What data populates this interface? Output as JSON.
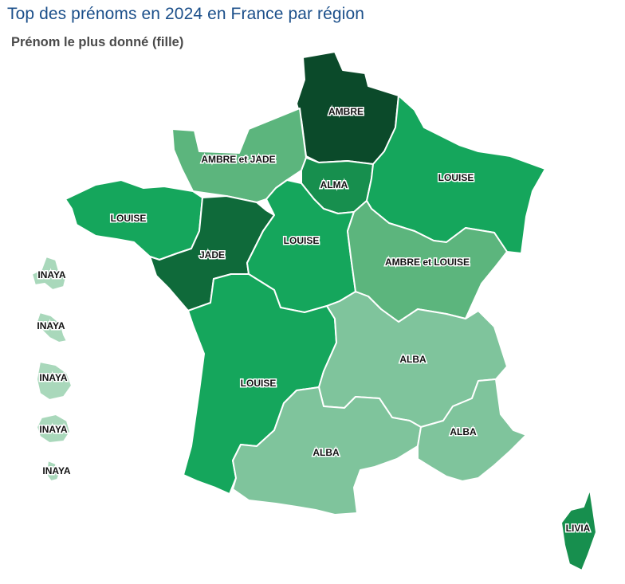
{
  "title": "Top des prénoms en 2024 en France par région",
  "subtitle": "Prénom le plus donné (fille)",
  "colors": {
    "darkest": "#0b4a2a",
    "dark": "#0f6a3a",
    "mid_dark": "#178f4e",
    "mid": "#15a65c",
    "light": "#5cb57d",
    "lightest": "#7fc49c",
    "overseas": "#a9d8bb"
  },
  "regions": [
    {
      "id": "hauts-de-france",
      "label": "AMBRE",
      "color": "#0b4a2a"
    },
    {
      "id": "normandie",
      "label": "AMBRE et JADE",
      "color": "#5cb57d"
    },
    {
      "id": "ile-de-france",
      "label": "ALMA",
      "color": "#178f4e"
    },
    {
      "id": "grand-est",
      "label": "LOUISE",
      "color": "#15a65c"
    },
    {
      "id": "bretagne",
      "label": "LOUISE",
      "color": "#15a65c"
    },
    {
      "id": "pays-de-la-loire",
      "label": "JADE",
      "color": "#0f6a3a"
    },
    {
      "id": "centre-val-de-loire",
      "label": "LOUISE",
      "color": "#15a65c"
    },
    {
      "id": "bourgogne-franche-comte",
      "label": "AMBRE et LOUISE",
      "color": "#5cb57d"
    },
    {
      "id": "nouvelle-aquitaine",
      "label": "LOUISE",
      "color": "#15a65c"
    },
    {
      "id": "auvergne-rhone-alpes",
      "label": "ALBA",
      "color": "#7fc49c"
    },
    {
      "id": "occitanie",
      "label": "ALBA",
      "color": "#7fc49c"
    },
    {
      "id": "provence-alpes-cote-d-azur",
      "label": "ALBA",
      "color": "#7fc49c"
    },
    {
      "id": "corse",
      "label": "LIVIA",
      "color": "#178f4e"
    },
    {
      "id": "guadeloupe",
      "label": "INAYA",
      "color": "#a9d8bb"
    },
    {
      "id": "martinique",
      "label": "INAYA",
      "color": "#a9d8bb"
    },
    {
      "id": "guyane",
      "label": "INAYA",
      "color": "#a9d8bb"
    },
    {
      "id": "la-reunion",
      "label": "INAYA",
      "color": "#a9d8bb"
    },
    {
      "id": "mayotte",
      "label": "INAYA",
      "color": "#a9d8bb"
    }
  ]
}
